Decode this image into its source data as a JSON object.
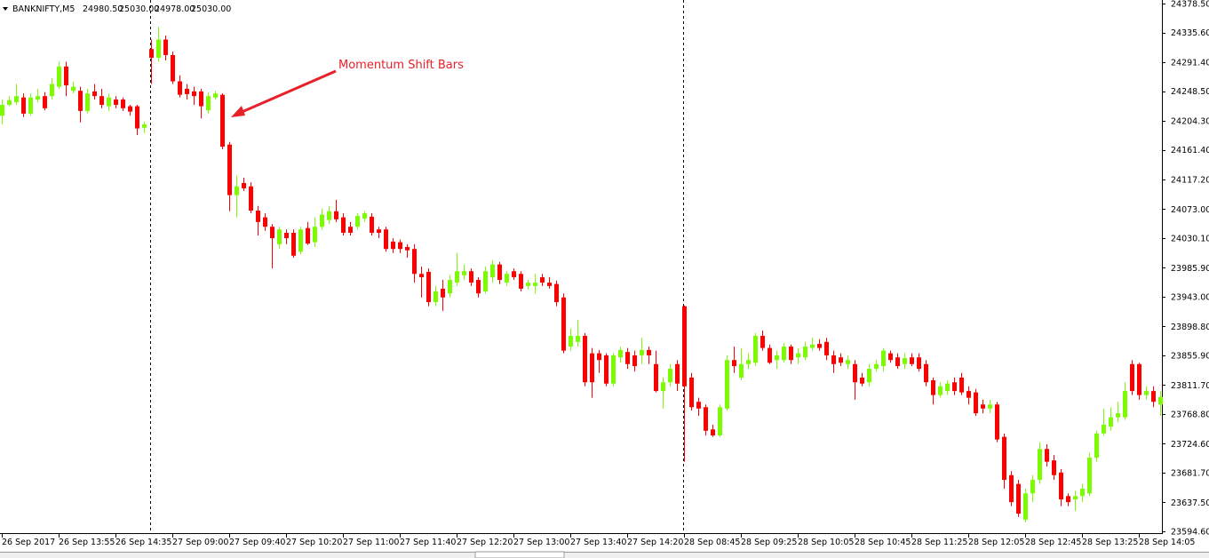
{
  "chart_data": {
    "type": "candlestick",
    "title": "BANKNIFTY,M5",
    "quote": [
      "24980.50",
      "25030.00",
      "24978.00",
      "25030.00"
    ],
    "annotation": "Momentum Shift Bars",
    "up_color": "#7cfc00",
    "down_color": "#ff0000",
    "ylim": [
      23594.6,
      24378.5
    ],
    "yticks": [
      {
        "value": 24378.5,
        "label": "24378.50"
      },
      {
        "value": 24335.6,
        "label": "24335.60"
      },
      {
        "value": 24291.4,
        "label": "24291.40"
      },
      {
        "value": 24248.5,
        "label": "24248.50"
      },
      {
        "value": 24204.3,
        "label": "24204.30"
      },
      {
        "value": 24161.4,
        "label": "24161.40"
      },
      {
        "value": 24117.2,
        "label": "24117.20"
      },
      {
        "value": 24073,
        "label": "24073.00"
      },
      {
        "value": 24030.1,
        "label": "24030.10"
      },
      {
        "value": 23985.9,
        "label": "23985.90"
      },
      {
        "value": 23943,
        "label": "23943.00"
      },
      {
        "value": 23898.8,
        "label": "23898.80"
      },
      {
        "value": 23855.9,
        "label": "23855.90"
      },
      {
        "value": 23811.7,
        "label": "23811.70"
      },
      {
        "value": 23768.8,
        "label": "23768.80"
      },
      {
        "value": 23724.6,
        "label": "23724.60"
      },
      {
        "value": 23681.7,
        "label": "23681.70"
      },
      {
        "value": 23637.5,
        "label": "23637.50"
      },
      {
        "value": 23594.6,
        "label": "23594.60"
      }
    ],
    "categories": [
      "26 Sep 2017",
      null,
      null,
      null,
      null,
      null,
      null,
      null,
      "26 Sep 13:55",
      null,
      null,
      null,
      null,
      null,
      null,
      null,
      "26 Sep 14:35",
      null,
      null,
      null,
      null,
      null,
      null,
      null,
      "27 Sep 09:00",
      null,
      null,
      null,
      null,
      null,
      null,
      null,
      "27 Sep 09:40",
      null,
      null,
      null,
      null,
      null,
      null,
      null,
      "27 Sep 10:20",
      null,
      null,
      null,
      null,
      null,
      null,
      null,
      "27 Sep 11:00",
      null,
      null,
      null,
      null,
      null,
      null,
      null,
      "27 Sep 11:40",
      null,
      null,
      null,
      null,
      null,
      null,
      null,
      "27 Sep 12:20",
      null,
      null,
      null,
      null,
      null,
      null,
      null,
      "27 Sep 13:00",
      null,
      null,
      null,
      null,
      null,
      null,
      null,
      "27 Sep 13:40",
      null,
      null,
      null,
      null,
      null,
      null,
      null,
      "27 Sep 14:20",
      null,
      null,
      null,
      null,
      null,
      null,
      null,
      "28 Sep 08:45",
      null,
      null,
      null,
      null,
      null,
      null,
      null,
      "28 Sep 09:25",
      null,
      null,
      null,
      null,
      null,
      null,
      null,
      "28 Sep 10:05",
      null,
      null,
      null,
      null,
      null,
      null,
      null,
      "28 Sep 10:45",
      null,
      null,
      null,
      null,
      null,
      null,
      null,
      "28 Sep 11:25",
      null,
      null,
      null,
      null,
      null,
      null,
      null,
      "28 Sep 12:05",
      null,
      null,
      null,
      null,
      null,
      null,
      null,
      "28 Sep 12:45",
      null,
      null,
      null,
      null,
      null,
      null,
      null,
      "28 Sep 13:25",
      null,
      null,
      null,
      null,
      null,
      null,
      null,
      "28 Sep 14:05",
      null,
      null,
      null
    ],
    "ohlc": [
      [
        24212,
        24236,
        24199,
        24228
      ],
      [
        24228,
        24241,
        24226,
        24235
      ],
      [
        24232,
        24259,
        24228,
        24241
      ],
      [
        24239,
        24245,
        24210,
        24215
      ],
      [
        24215,
        24245,
        24212,
        24239
      ],
      [
        24236,
        24252,
        24232,
        24241
      ],
      [
        24241,
        24247,
        24220,
        24223
      ],
      [
        24241,
        24268,
        24236,
        24259
      ],
      [
        24255,
        24292,
        24252,
        24285
      ],
      [
        24285,
        24292,
        24241,
        24257
      ],
      [
        24249,
        24263,
        24245,
        24255
      ],
      [
        24249,
        24255,
        24202,
        24219
      ],
      [
        24219,
        24252,
        24215,
        24245
      ],
      [
        24248,
        24259,
        24236,
        24241
      ],
      [
        24241,
        24252,
        24223,
        24228
      ],
      [
        24226,
        24245,
        24219,
        24239
      ],
      [
        24236,
        24241,
        24223,
        24228
      ],
      [
        24236,
        24239,
        24219,
        24223
      ],
      [
        24226,
        24228,
        24212,
        24218
      ],
      [
        24226,
        24228,
        24183,
        24193
      ],
      [
        24194,
        24203,
        24186,
        24199
      ],
      [
        24311,
        24325,
        24259,
        24298
      ],
      [
        24298,
        24344,
        24292,
        24325
      ],
      [
        24325,
        24331,
        24294,
        24302
      ],
      [
        24302,
        24307,
        24259,
        24263
      ],
      [
        24263,
        24272,
        24239,
        24243
      ],
      [
        24252,
        24259,
        24236,
        24244
      ],
      [
        24248,
        24255,
        24228,
        24241
      ],
      [
        24248,
        24252,
        24208,
        24226
      ],
      [
        24220,
        24247,
        24215,
        24241
      ],
      [
        24239,
        24249,
        24236,
        24245
      ],
      [
        24243,
        24245,
        24162,
        24166
      ],
      [
        24169,
        24173,
        24070,
        24094
      ],
      [
        24094,
        24123,
        24061,
        24107
      ],
      [
        24112,
        24120,
        24100,
        24104
      ],
      [
        24107,
        24113,
        24067,
        24071
      ],
      [
        24071,
        24078,
        24034,
        24054
      ],
      [
        24061,
        24067,
        24041,
        24047
      ],
      [
        24047,
        24051,
        23985,
        24030
      ],
      [
        24021,
        24047,
        24014,
        24043
      ],
      [
        24038,
        24043,
        24021,
        24030
      ],
      [
        24038,
        24043,
        24001,
        24004
      ],
      [
        24010,
        24047,
        24006,
        24043
      ],
      [
        24045,
        24054,
        24020,
        24022
      ],
      [
        24024,
        24061,
        24017,
        24047
      ],
      [
        24047,
        24074,
        24043,
        24065
      ],
      [
        24057,
        24078,
        24051,
        24070
      ],
      [
        24070,
        24087,
        24054,
        24058
      ],
      [
        24061,
        24067,
        24034,
        24038
      ],
      [
        24047,
        24054,
        24034,
        24038
      ],
      [
        24047,
        24067,
        24043,
        24063
      ],
      [
        24059,
        24070,
        24054,
        24067
      ],
      [
        24062,
        24067,
        24034,
        24038
      ],
      [
        24043,
        24047,
        24030,
        24038
      ],
      [
        24043,
        24047,
        24010,
        24014
      ],
      [
        24025,
        24030,
        24008,
        24014
      ],
      [
        24024,
        24028,
        24008,
        24014
      ],
      [
        24017,
        24021,
        24001,
        24012
      ],
      [
        24014,
        24021,
        23964,
        23977
      ],
      [
        23977,
        23988,
        23942,
        23972
      ],
      [
        23980,
        23985,
        23929,
        23935
      ],
      [
        23935,
        23959,
        23929,
        23951
      ],
      [
        23955,
        23968,
        23922,
        23942
      ],
      [
        23948,
        23975,
        23942,
        23968
      ],
      [
        23964,
        24008,
        23959,
        23981
      ],
      [
        23975,
        23991,
        23968,
        23981
      ],
      [
        23981,
        23985,
        23959,
        23964
      ],
      [
        23968,
        23972,
        23942,
        23948
      ],
      [
        23951,
        23988,
        23948,
        23981
      ],
      [
        23972,
        23997,
        23964,
        23991
      ],
      [
        23991,
        23995,
        23962,
        23968
      ],
      [
        23964,
        23981,
        23959,
        23977
      ],
      [
        23981,
        23985,
        23968,
        23972
      ],
      [
        23977,
        23981,
        23951,
        23955
      ],
      [
        23959,
        23968,
        23954,
        23964
      ],
      [
        23959,
        23977,
        23948,
        23964
      ],
      [
        23972,
        23977,
        23959,
        23964
      ],
      [
        23964,
        23972,
        23955,
        23959
      ],
      [
        23962,
        23967,
        23929,
        23935
      ],
      [
        23942,
        23948,
        23859,
        23863
      ],
      [
        23869,
        23896,
        23863,
        23885
      ],
      [
        23876,
        23909,
        23869,
        23885
      ],
      [
        23885,
        23889,
        23810,
        23816
      ],
      [
        23859,
        23867,
        23793,
        23816
      ],
      [
        23859,
        23864,
        23830,
        23849
      ],
      [
        23856,
        23859,
        23810,
        23814
      ],
      [
        23814,
        23859,
        23810,
        23856
      ],
      [
        23853,
        23869,
        23845,
        23864
      ],
      [
        23861,
        23867,
        23836,
        23843
      ],
      [
        23856,
        23863,
        23832,
        23840
      ],
      [
        23856,
        23882,
        23843,
        23864
      ],
      [
        23864,
        23869,
        23843,
        23856
      ],
      [
        23843,
        23863,
        23801,
        23803
      ],
      [
        23803,
        23823,
        23777,
        23816
      ],
      [
        23816,
        23843,
        23810,
        23836
      ],
      [
        23843,
        23849,
        23803,
        23814
      ],
      [
        23929,
        23930,
        23698,
        23810
      ],
      [
        23823,
        23830,
        23774,
        23779
      ],
      [
        23787,
        23793,
        23766,
        23777
      ],
      [
        23779,
        23783,
        23737,
        23744
      ],
      [
        23746,
        23753,
        23735,
        23737
      ],
      [
        23737,
        23783,
        23735,
        23779
      ],
      [
        23777,
        23856,
        23774,
        23849
      ],
      [
        23849,
        23869,
        23830,
        23840
      ],
      [
        23823,
        23867,
        23819,
        23843
      ],
      [
        23843,
        23859,
        23836,
        23849
      ],
      [
        23845,
        23889,
        23840,
        23885
      ],
      [
        23885,
        23893,
        23863,
        23867
      ],
      [
        23867,
        23872,
        23843,
        23845
      ],
      [
        23849,
        23863,
        23836,
        23856
      ],
      [
        23849,
        23874,
        23845,
        23869
      ],
      [
        23869,
        23872,
        23843,
        23849
      ],
      [
        23853,
        23867,
        23843,
        23859
      ],
      [
        23853,
        23876,
        23849,
        23869
      ],
      [
        23867,
        23882,
        23863,
        23872
      ],
      [
        23873,
        23880,
        23863,
        23867
      ],
      [
        23876,
        23882,
        23849,
        23856
      ],
      [
        23856,
        23863,
        23830,
        23843
      ],
      [
        23853,
        23859,
        23840,
        23845
      ],
      [
        23843,
        23856,
        23836,
        23849
      ],
      [
        23843,
        23849,
        23790,
        23816
      ],
      [
        23823,
        23830,
        23810,
        23814
      ],
      [
        23816,
        23843,
        23810,
        23836
      ],
      [
        23836,
        23849,
        23832,
        23843
      ],
      [
        23840,
        23867,
        23832,
        23863
      ],
      [
        23859,
        23863,
        23845,
        23849
      ],
      [
        23853,
        23859,
        23836,
        23840
      ],
      [
        23843,
        23859,
        23836,
        23852
      ],
      [
        23853,
        23859,
        23840,
        23843
      ],
      [
        23853,
        23859,
        23832,
        23836
      ],
      [
        23843,
        23849,
        23810,
        23816
      ],
      [
        23819,
        23823,
        23783,
        23797
      ],
      [
        23797,
        23816,
        23793,
        23810
      ],
      [
        23803,
        23819,
        23797,
        23814
      ],
      [
        23816,
        23823,
        23797,
        23803
      ],
      [
        23823,
        23830,
        23797,
        23801
      ],
      [
        23803,
        23810,
        23783,
        23793
      ],
      [
        23801,
        23806,
        23766,
        23770
      ],
      [
        23783,
        23790,
        23770,
        23777
      ],
      [
        23777,
        23790,
        23770,
        23783
      ],
      [
        23783,
        23787,
        23727,
        23731
      ],
      [
        23735,
        23740,
        23658,
        23671
      ],
      [
        23678,
        23684,
        23632,
        23638
      ],
      [
        23665,
        23671,
        23616,
        23621
      ],
      [
        23612,
        23658,
        23608,
        23651
      ],
      [
        23651,
        23678,
        23638,
        23671
      ],
      [
        23671,
        23727,
        23665,
        23717
      ],
      [
        23717,
        23724,
        23691,
        23698
      ],
      [
        23700,
        23708,
        23671,
        23678
      ],
      [
        23682,
        23687,
        23632,
        23642
      ],
      [
        23647,
        23651,
        23632,
        23638
      ],
      [
        23642,
        23655,
        23625,
        23647
      ],
      [
        23647,
        23665,
        23638,
        23658
      ],
      [
        23651,
        23711,
        23647,
        23704
      ],
      [
        23704,
        23744,
        23698,
        23740
      ],
      [
        23740,
        23777,
        23737,
        23753
      ],
      [
        23750,
        23779,
        23744,
        23764
      ],
      [
        23764,
        23787,
        23757,
        23770
      ],
      [
        23764,
        23816,
        23760,
        23803
      ],
      [
        23843,
        23849,
        23797,
        23803
      ],
      [
        23843,
        23845,
        23790,
        23797
      ],
      [
        23797,
        23810,
        23790,
        23803
      ],
      [
        23803,
        23810,
        23779,
        23787
      ],
      [
        23783,
        23803,
        23766,
        23794
      ]
    ]
  }
}
